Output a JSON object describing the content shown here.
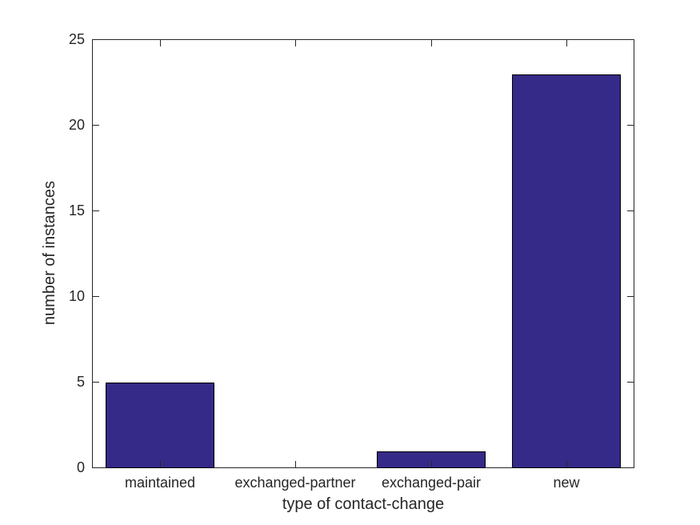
{
  "chart_data": {
    "type": "bar",
    "title": "",
    "categories": [
      "maintained",
      "exchanged-partner",
      "exchanged-pair",
      "new"
    ],
    "values": [
      5,
      0,
      1,
      23
    ],
    "xlabel": "type of contact-change",
    "ylabel": "number of instances",
    "ylim": [
      0,
      25
    ],
    "yticks": [
      0,
      5,
      10,
      15,
      20,
      25
    ],
    "bar_width_fraction": 0.8,
    "grid": false,
    "legend_position": "none",
    "tick_direction": "in",
    "box": true,
    "colors": {
      "bar_fill": "#352A87",
      "bar_edge": "#000000",
      "axis": "#262626",
      "text": "#262626",
      "background": "#FFFFFF"
    }
  }
}
